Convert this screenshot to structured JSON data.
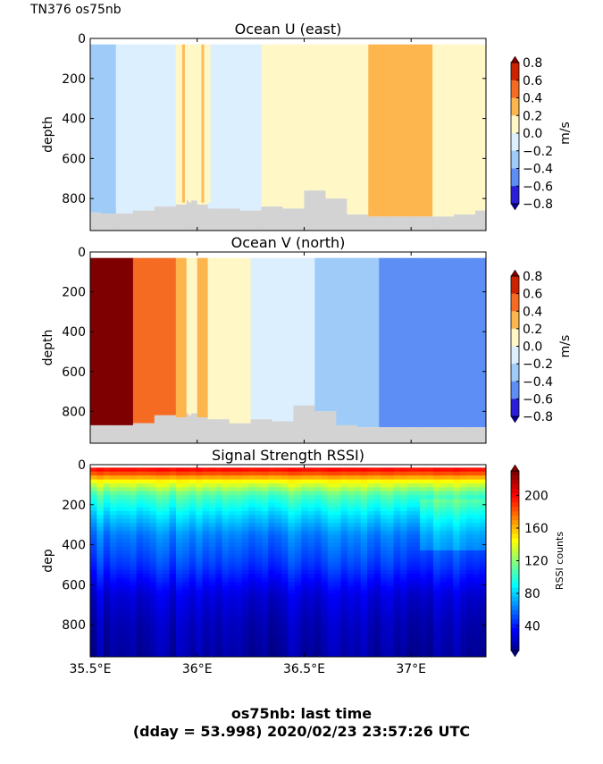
{
  "header": {
    "label": "TN376 os75nb"
  },
  "footer": {
    "line1": "os75nb: last time",
    "line2": "(dday = 53.998) 2020/02/23 23:57:26 UTC"
  },
  "chart_data": [
    {
      "type": "heatmap",
      "title": "Ocean U (east)",
      "ylabel": "depth",
      "ylim": [
        960,
        0
      ],
      "yticks": [
        "0",
        "200",
        "400",
        "600",
        "800"
      ],
      "xlim": [
        35.5,
        37.35
      ],
      "colorbar": {
        "label": "m/s",
        "ticks": [
          "0.8",
          "0.6",
          "0.4",
          "0.2",
          "0.0",
          "−0.2",
          "−0.4",
          "−0.6",
          "−0.8"
        ],
        "levels": [
          "#7f0000",
          "#cc2200",
          "#f56b22",
          "#fdb54e",
          "#fff7c6",
          "#dcefff",
          "#9ecbf8",
          "#5d8ef5",
          "#2a1ed8",
          "#0b0091"
        ]
      },
      "columns": [
        {
          "lon": 35.5,
          "bottom": 870,
          "v": -0.3
        },
        {
          "lon": 35.55,
          "bottom": 875,
          "v": -0.25
        },
        {
          "lon": 35.62,
          "bottom": 875,
          "v": -0.1
        },
        {
          "lon": 35.7,
          "bottom": 860,
          "v": -0.05
        },
        {
          "lon": 35.8,
          "bottom": 840,
          "v": -0.05
        },
        {
          "lon": 35.9,
          "bottom": 830,
          "v": 0.1
        },
        {
          "lon": 35.95,
          "bottom": 810,
          "v": 0.05
        },
        {
          "lon": 36.0,
          "bottom": 830,
          "v": 0.15
        },
        {
          "lon": 36.05,
          "bottom": 850,
          "v": -0.05
        },
        {
          "lon": 36.2,
          "bottom": 860,
          "v": -0.05
        },
        {
          "lon": 36.3,
          "bottom": 840,
          "v": 0.05
        },
        {
          "lon": 36.4,
          "bottom": 850,
          "v": 0.05
        },
        {
          "lon": 36.5,
          "bottom": 760,
          "v": 0.05
        },
        {
          "lon": 36.6,
          "bottom": 800,
          "v": 0.05
        },
        {
          "lon": 36.7,
          "bottom": 880,
          "v": 0.1
        },
        {
          "lon": 36.8,
          "bottom": 890,
          "v": 0.3
        },
        {
          "lon": 36.9,
          "bottom": 890,
          "v": 0.3
        },
        {
          "lon": 37.0,
          "bottom": 890,
          "v": 0.25
        },
        {
          "lon": 37.1,
          "bottom": 890,
          "v": 0.05
        },
        {
          "lon": 37.2,
          "bottom": 880,
          "v": 0.05
        },
        {
          "lon": 37.3,
          "bottom": 860,
          "v": 0.05
        }
      ]
    },
    {
      "type": "heatmap",
      "title": "Ocean V (north)",
      "ylabel": "depth",
      "ylim": [
        960,
        0
      ],
      "yticks": [
        "0",
        "200",
        "400",
        "600",
        "800"
      ],
      "xlim": [
        35.5,
        37.35
      ],
      "colorbar": {
        "label": "m/s",
        "ticks": [
          "0.8",
          "0.6",
          "0.4",
          "0.2",
          "0.0",
          "−0.2",
          "−0.4",
          "−0.6",
          "−0.8"
        ],
        "levels": [
          "#7f0000",
          "#cc2200",
          "#f56b22",
          "#fdb54e",
          "#fff7c6",
          "#dcefff",
          "#9ecbf8",
          "#5d8ef5",
          "#2a1ed8",
          "#0b0091"
        ]
      },
      "columns": [
        {
          "lon": 35.5,
          "bottom": 870,
          "v": 0.7
        },
        {
          "lon": 35.6,
          "bottom": 870,
          "v": 0.65
        },
        {
          "lon": 35.7,
          "bottom": 860,
          "v": 0.5
        },
        {
          "lon": 35.8,
          "bottom": 820,
          "v": 0.4
        },
        {
          "lon": 35.9,
          "bottom": 830,
          "v": 0.3
        },
        {
          "lon": 35.95,
          "bottom": 810,
          "v": 0.15
        },
        {
          "lon": 36.0,
          "bottom": 830,
          "v": 0.25
        },
        {
          "lon": 36.05,
          "bottom": 840,
          "v": 0.1
        },
        {
          "lon": 36.15,
          "bottom": 860,
          "v": 0.05
        },
        {
          "lon": 36.25,
          "bottom": 840,
          "v": -0.05
        },
        {
          "lon": 36.35,
          "bottom": 850,
          "v": -0.1
        },
        {
          "lon": 36.45,
          "bottom": 770,
          "v": -0.15
        },
        {
          "lon": 36.55,
          "bottom": 800,
          "v": -0.25
        },
        {
          "lon": 36.65,
          "bottom": 870,
          "v": -0.35
        },
        {
          "lon": 36.75,
          "bottom": 880,
          "v": -0.4
        },
        {
          "lon": 36.85,
          "bottom": 880,
          "v": -0.45
        },
        {
          "lon": 36.95,
          "bottom": 880,
          "v": -0.55
        },
        {
          "lon": 37.05,
          "bottom": 880,
          "v": -0.55
        },
        {
          "lon": 37.15,
          "bottom": 880,
          "v": -0.5
        },
        {
          "lon": 37.25,
          "bottom": 880,
          "v": -0.45
        }
      ]
    },
    {
      "type": "heatmap",
      "title": "Signal Strength RSSI)",
      "ylabel": "dep",
      "ylim": [
        960,
        0
      ],
      "yticks": [
        "0",
        "200",
        "400",
        "600",
        "800"
      ],
      "xlabel_ticks": [
        "35.5°E",
        "36°E",
        "36.5°E",
        "37°E"
      ],
      "xticks": [
        35.5,
        36.0,
        36.5,
        37.0
      ],
      "xlim": [
        35.5,
        37.35
      ],
      "colorbar": {
        "label": "RSSI counts",
        "ticks": [
          "200",
          "160",
          "120",
          "80",
          "40"
        ],
        "range": [
          10,
          230
        ]
      },
      "profile": [
        {
          "depth": 30,
          "rssi": 200
        },
        {
          "depth": 80,
          "rssi": 150
        },
        {
          "depth": 150,
          "rssi": 110
        },
        {
          "depth": 250,
          "rssi": 85
        },
        {
          "depth": 350,
          "rssi": 65
        },
        {
          "depth": 500,
          "rssi": 50
        },
        {
          "depth": 650,
          "rssi": 30
        },
        {
          "depth": 800,
          "rssi": 22
        },
        {
          "depth": 950,
          "rssi": 18
        }
      ]
    }
  ]
}
